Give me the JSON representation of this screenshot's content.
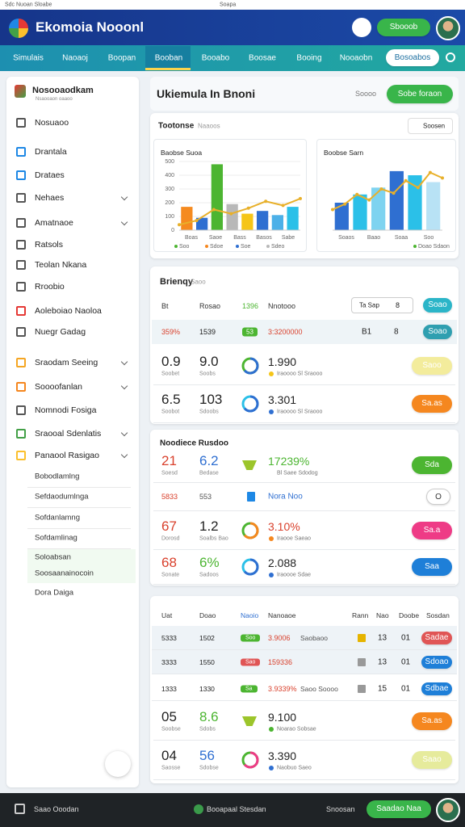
{
  "status": {
    "left": "Sdc Nuoan Sloabe",
    "center": "Soapa"
  },
  "header": {
    "title": "Ekomoia Nooonl",
    "button": "Sbooob"
  },
  "nav": {
    "tabs": [
      "Simulais",
      "Naoaoj",
      "Boopan",
      "Booban",
      "Booabo",
      "Boosae",
      "Booing",
      "Nooaobn"
    ],
    "active": 3,
    "pill": "Bosoabos"
  },
  "sidebar": {
    "brand": "Nosooaodkam",
    "brand_sub": "Nsaooaon oaaoo",
    "items": [
      {
        "label": "Nosuaoo",
        "chevron": false
      },
      {
        "label": "Drantala",
        "chevron": false
      },
      {
        "label": "Drataes",
        "chevron": false
      },
      {
        "label": "Nehaes",
        "chevron": true
      },
      {
        "label": "Amatnaoe",
        "chevron": true
      },
      {
        "label": "Ratsols",
        "chevron": false
      },
      {
        "label": "Teolan Nkana",
        "chevron": false
      },
      {
        "label": "Rroobio",
        "chevron": false
      },
      {
        "label": "Aoleboiao Naoloa",
        "chevron": false
      },
      {
        "label": "Nuegr Gadag",
        "chevron": false
      },
      {
        "label": "Sraodam Seeing",
        "chevron": true
      },
      {
        "label": "Soooofanlan",
        "chevron": true
      },
      {
        "label": "Nomnodi Fosiga",
        "chevron": false
      },
      {
        "label": "Sraooal Sdenlatis",
        "chevron": true
      },
      {
        "label": "Panaool Rasigao",
        "chevron": true
      }
    ],
    "subitems": [
      "Bobodlamlng",
      "Sefdaodumlnga",
      "Sofdanlamng",
      "Sofdamlinag",
      "Soloabsan",
      "Soosaanainocoin",
      "Dora Daiga"
    ]
  },
  "main": {
    "title": "Ukiemula In Bnoni",
    "search": "Soooo",
    "button": "Sobe foraon"
  },
  "charts_panel": {
    "label": "Tootonse",
    "label_sub": "Naaoos",
    "dropdown": "Soosen",
    "charts": [
      {
        "title": "Baobse Suoa",
        "ylim": [
          0,
          500
        ],
        "yticks": [
          0,
          100,
          200,
          300,
          400,
          500
        ],
        "bars": [
          {
            "value": 170,
            "color": "#f58a1f"
          },
          {
            "value": 90,
            "color": "#2f6fd1"
          },
          {
            "value": 480,
            "color": "#4cb531"
          },
          {
            "value": 190,
            "color": "#b8b8b8"
          },
          {
            "value": 120,
            "color": "#f5c518"
          },
          {
            "value": 140,
            "color": "#2f6fd1"
          },
          {
            "value": 110,
            "color": "#4cb0e8"
          },
          {
            "value": 170,
            "color": "#2bc0e8"
          }
        ],
        "line": [
          40,
          70,
          150,
          120,
          160,
          210,
          180,
          230
        ],
        "line_color": "#e8b02a",
        "categories": [
          "Boas",
          "Saoe",
          "Bass",
          "Basos",
          "Sabe"
        ],
        "legend": [
          "Soo",
          "Sdoe",
          "Soe",
          "Sdeo"
        ]
      },
      {
        "title": "Boobse Sarn",
        "ylim": [
          0,
          500
        ],
        "bars": [
          {
            "value": 200,
            "color": "#2f6fd1"
          },
          {
            "value": 260,
            "color": "#2bc0e8"
          },
          {
            "value": 310,
            "color": "#7ed3f0"
          },
          {
            "value": 430,
            "color": "#2f6fd1"
          },
          {
            "value": 400,
            "color": "#2bc0e8"
          },
          {
            "value": 350,
            "color": "#b8e2f5"
          }
        ],
        "line": [
          150,
          190,
          260,
          220,
          300,
          270,
          360,
          310,
          420,
          380
        ],
        "line_color": "#e8b02a",
        "categories": [
          "Soaos",
          "Baao",
          "Soaa",
          "Soo"
        ],
        "legend": [
          "Doao Sdaon"
        ]
      }
    ]
  },
  "section1": {
    "title": "Brienqy",
    "title_sub": "Saoo",
    "header": {
      "cells": [
        "Bt",
        "Rosao",
        "1396",
        "Nnotooo"
      ],
      "filter": "Ta Sap",
      "icon": "8",
      "btn": "Soao",
      "btn_color": "#2bb5c8"
    },
    "small": {
      "cells": [
        "359%",
        "1539"
      ],
      "tag": "53",
      "tag_color": "#4cb531",
      "value": "3:3200000",
      "c1": "B1",
      "c2": "8",
      "btn": "Soao",
      "btn_color": "#2f9fb0"
    },
    "rows": [
      {
        "a": "0.9",
        "a_sub": "Soobet",
        "b": "9.0",
        "b_sub": "Soobs",
        "ring": [
          "#2f6fd1",
          "#4cb531"
        ],
        "value": "1.990",
        "note": "Iraoooo Sl Sraooo",
        "dot": "#f5c518",
        "btn": "Saoo",
        "btn_color": "#f3ec9c"
      },
      {
        "a": "6.5",
        "a_sub": "Soobot",
        "b": "103",
        "b_sub": "Sdoobs",
        "ring": [
          "#2f6fd1",
          "#2bc0e8"
        ],
        "value": "3.301",
        "note": "Iraoooo Sl Sraooo",
        "dot": "#2f6fd1",
        "btn": "Sa.as",
        "btn_color": "#f5871f"
      }
    ]
  },
  "section2": {
    "title": "Noodiece Rusdoo",
    "rows": [
      {
        "a": "21",
        "a_sub": "Soesd",
        "a_color": "#d9402c",
        "b": "6.2",
        "b_sub": "Bedase",
        "b_color": "#2f6fd1",
        "value": "17239%",
        "value_color": "#4cb531",
        "note": "Bl Saee Sdodog",
        "btn": "Sda",
        "btn_color": "#4cb531"
      },
      {
        "a": "5833",
        "b": "553",
        "value": "Nora Noo",
        "value_color": "#2f6fd1",
        "btn": "O"
      },
      {
        "a": "67",
        "a_sub": "Dorosd",
        "a_color": "#d9402c",
        "b": "1.2",
        "b_sub": "Soalbs Bao",
        "ring": [
          "#f5871f",
          "#4cb531"
        ],
        "value": "3.10%",
        "value_color": "#d9402c",
        "note": "Iraooe Saeao",
        "dot": "#f5871f",
        "btn": "Sa.a",
        "btn_color": "#ee3b86"
      },
      {
        "a": "68",
        "a_sub": "Sonate",
        "a_color": "#d9402c",
        "b": "6%",
        "b_sub": "Sadoos",
        "b_color": "#4cb531",
        "ring": [
          "#2f6fd1",
          "#2bc0e8"
        ],
        "value": "2.088",
        "note": "Iraoooe Sdae",
        "dot": "#2f6fd1",
        "btn": "Saa",
        "btn_color": "#1e7fd8"
      }
    ]
  },
  "section3": {
    "header": [
      "Uat",
      "Doao",
      "Naoio",
      "Nanoaoe",
      "Rann",
      "Nao",
      "Doobe",
      "Sosdan"
    ],
    "small": [
      {
        "cells": [
          "5333",
          "1502"
        ],
        "tag": "Soo",
        "tag_color": "#4cb531",
        "value": "3.9006",
        "value_color": "#d9402c",
        "sub": "Saobaoo",
        "c1": "13",
        "c2": "01",
        "btn": "Sadae",
        "btn_color": "#e05555"
      },
      {
        "cells": [
          "3333",
          "1550"
        ],
        "tag": "Sao",
        "tag_color": "#e05555",
        "value": "159336",
        "value_color": "#d9402c",
        "sub": "",
        "c1": "13",
        "c2": "01",
        "btn": "Sdoao",
        "btn_color": "#1e7fd8"
      },
      {
        "cells": [
          "1333",
          "1330"
        ],
        "tag": "Sa",
        "tag_color": "#4cb531",
        "value": "3.9339%",
        "value_color": "#d9402c",
        "sub": "Saoo Soooo",
        "c1": "15",
        "c2": "01",
        "btn": "Sdbae",
        "btn_color": "#1e7fd8"
      }
    ],
    "rows": [
      {
        "a": "05",
        "a_sub": "Soobse",
        "b": "8.6",
        "b_sub": "Sdobs",
        "b_color": "#4cb531",
        "value": "9.100",
        "note": "Noarao Sobsae",
        "dot": "#4cb531",
        "btn": "Sa.as",
        "btn_color": "#f5871f"
      },
      {
        "a": "04",
        "a_sub": "Saosse",
        "b": "56",
        "b_sub": "Sdobse",
        "b_color": "#2f6fd1",
        "ring": [
          "#ee3b86",
          "#4cb531"
        ],
        "value": "3.390",
        "note": "Naobuo Saeo",
        "dot": "#2f6fd1",
        "btn": "Saao",
        "btn_color": "#e6eb9c"
      }
    ]
  },
  "footer": {
    "left": "Saao Ooodan",
    "center": "Booapaal Stesdan",
    "right": "Snoosan",
    "button": "Saadao Naa"
  }
}
